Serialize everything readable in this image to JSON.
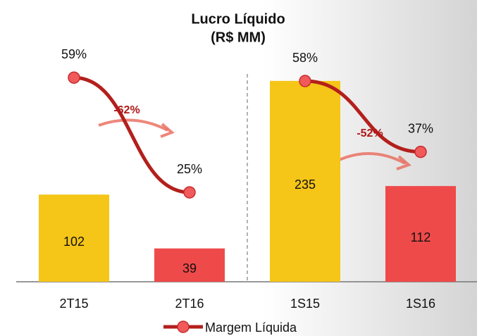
{
  "chart_data": {
    "type": "bar",
    "title": "Lucro Líquido",
    "subtitle": "(R$ MM)",
    "categories": [
      "2T15",
      "2T16",
      "1S15",
      "1S16"
    ],
    "values": [
      102,
      39,
      235,
      112
    ],
    "colors": [
      "#f5c518",
      "#ef4a4a",
      "#f5c518",
      "#ef4a4a"
    ],
    "ylim": [
      0,
      300
    ],
    "divider_after": 1,
    "line": {
      "name": "Margem Líquida",
      "color": "#b3201c",
      "axis": "y2",
      "values": [
        59,
        25,
        58,
        37
      ],
      "value_labels": [
        "59%",
        "25%",
        "58%",
        "37%"
      ]
    },
    "y2lim": [
      -1.5,
      74.5
    ],
    "annotations": [
      "-62%",
      "-52%"
    ]
  }
}
